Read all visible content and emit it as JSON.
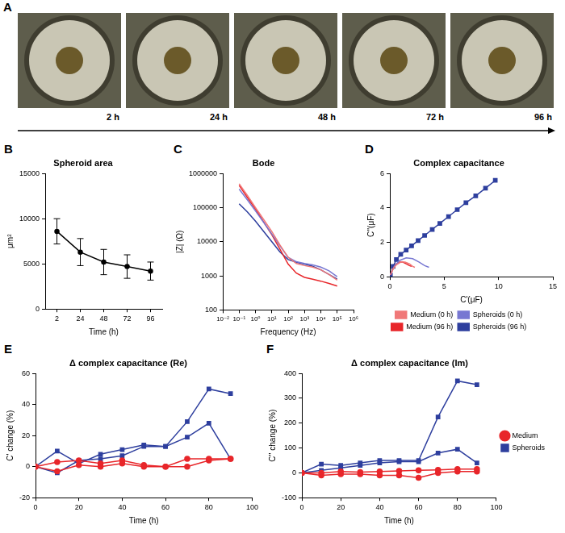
{
  "image_panel": {
    "panel": "A",
    "labels": [
      "2 h",
      "24 h",
      "48 h",
      "72 h",
      "96 h"
    ]
  },
  "chart_data": [
    {
      "panel": "B",
      "type": "line",
      "title": "Spheroid area",
      "x_label": "Time (h)",
      "y_label": "μm²",
      "categories": [
        "2",
        "24",
        "48",
        "72",
        "96"
      ],
      "values": [
        8600,
        6300,
        5200,
        4700,
        4200
      ],
      "errors": [
        1400,
        1500,
        1400,
        1300,
        1000
      ],
      "color": "#000000",
      "marker": "circle",
      "ylim": [
        0,
        15000
      ],
      "yticks": [
        0,
        5000,
        10000,
        15000
      ],
      "grid": false
    },
    {
      "panel": "C",
      "type": "line",
      "title": "Bode",
      "x_label": "Frequency (Hz)",
      "y_label": "|Z| (Ω)",
      "x": [
        0.1,
        0.316,
        1,
        3.16,
        10,
        31.6,
        100,
        316,
        1000,
        3162,
        10000,
        31623,
        100000
      ],
      "series": [
        {
          "name": "Medium (0 h)",
          "color": "#f07878",
          "values": [
            500000,
            230000,
            100000,
            45000,
            20000,
            8000,
            3500,
            2300,
            2000,
            1800,
            1500,
            1100,
            750
          ]
        },
        {
          "name": "Spheroids (0 h)",
          "color": "#7878d2",
          "values": [
            350000,
            170000,
            80000,
            37000,
            17000,
            7500,
            3500,
            2600,
            2300,
            2100,
            1800,
            1400,
            950
          ]
        },
        {
          "name": "Medium (96 h)",
          "color": "#e8262a",
          "values": [
            450000,
            200000,
            90000,
            38000,
            16000,
            6000,
            2200,
            1200,
            900,
            800,
            700,
            600,
            500
          ]
        },
        {
          "name": "Spheroids (96 h)",
          "color": "#2e3f9e",
          "values": [
            130000,
            75000,
            40000,
            20000,
            10000,
            5000,
            3000,
            2500,
            2200,
            1900,
            1500,
            1100,
            800
          ]
        }
      ],
      "marker": "none",
      "log": true,
      "xlim": [
        0.01,
        1000000
      ],
      "xticks": [
        {
          "value": 0.01,
          "label": "10⁻²"
        },
        {
          "value": 0.1,
          "label": "10⁻¹"
        },
        {
          "value": 1,
          "label": "10⁰"
        },
        {
          "value": 10,
          "label": "10¹"
        },
        {
          "value": 100,
          "label": "10²"
        },
        {
          "value": 1000,
          "label": "10³"
        },
        {
          "value": 10000,
          "label": "10⁴"
        },
        {
          "value": 100000,
          "label": "10⁵"
        },
        {
          "value": 1000000,
          "label": "10⁶"
        }
      ],
      "ylim": [
        100,
        1000000
      ],
      "yticks": [
        100,
        1000,
        10000,
        100000,
        1000000
      ],
      "grid": false
    },
    {
      "panel": "D",
      "type": "line",
      "title": "Complex capacitance",
      "x_label": "C'(μF)",
      "y_label": "C''(μF)",
      "series": [
        {
          "name": "Medium (0 h)",
          "color": "#f07878",
          "marker": "none",
          "x": [
            0.05,
            0.3,
            0.6,
            1.0,
            1.4,
            1.8,
            2.1,
            2.3
          ],
          "values": [
            0.1,
            0.45,
            0.7,
            0.85,
            0.85,
            0.75,
            0.6,
            0.55
          ]
        },
        {
          "name": "Spheroids (0 h)",
          "color": "#7878d2",
          "marker": "none",
          "x": [
            0.05,
            0.4,
            0.9,
            1.5,
            2.1,
            2.7,
            3.2,
            3.6
          ],
          "values": [
            0.1,
            0.6,
            0.95,
            1.1,
            1.05,
            0.85,
            0.65,
            0.55
          ]
        },
        {
          "name": "Medium (96 h)",
          "color": "#e8262a",
          "marker": "none",
          "x": [
            0.05,
            0.3,
            0.6,
            0.9,
            1.2,
            1.5,
            1.8,
            2.0
          ],
          "values": [
            0.1,
            0.5,
            0.75,
            0.85,
            0.85,
            0.75,
            0.65,
            0.6
          ]
        },
        {
          "name": "Spheroids (96 h)",
          "color": "#2e3f9e",
          "marker": "square",
          "x": [
            0.05,
            0.3,
            0.6,
            1.0,
            1.5,
            2.0,
            2.6,
            3.2,
            3.9,
            4.6,
            5.4,
            6.2,
            7.0,
            7.9,
            8.8,
            9.7
          ],
          "values": [
            0.1,
            0.6,
            1.0,
            1.3,
            1.55,
            1.8,
            2.1,
            2.4,
            2.75,
            3.1,
            3.5,
            3.9,
            4.3,
            4.7,
            5.15,
            5.6
          ]
        }
      ],
      "xlim": [
        0,
        15
      ],
      "xticks": [
        0,
        5,
        10,
        15
      ],
      "ylim": [
        0,
        6
      ],
      "yticks": [
        0,
        2,
        4,
        6
      ],
      "grid": false,
      "legend": "bottom"
    },
    {
      "panel": "E",
      "type": "line",
      "title": "Δ complex capacitance (Re)",
      "x_label": "Time (h)",
      "y_label": "C' change (%)",
      "x": [
        0,
        10,
        20,
        30,
        40,
        50,
        60,
        70,
        80,
        90
      ],
      "series": [
        {
          "name": "Medium",
          "color": "#e8262a",
          "marker": "circle",
          "values": [
            0,
            3,
            4,
            2,
            4,
            1,
            0,
            5,
            5,
            5
          ]
        },
        {
          "name": "Medium",
          "color": "#e8262a",
          "marker": "circle",
          "values": [
            0,
            -3,
            1,
            0,
            2,
            0,
            0,
            0,
            4,
            5
          ]
        },
        {
          "name": "Spheroids",
          "color": "#2e3f9e",
          "marker": "square",
          "values": [
            0,
            10,
            2,
            8,
            11,
            14,
            13,
            29,
            50,
            47
          ]
        },
        {
          "name": "Spheroids",
          "color": "#2e3f9e",
          "marker": "square",
          "values": [
            0,
            -4,
            4,
            5,
            7,
            13,
            13,
            19,
            28,
            5
          ]
        }
      ],
      "xlim": [
        0,
        100
      ],
      "xticks": [
        0,
        20,
        40,
        60,
        80,
        100
      ],
      "ylim": [
        -20,
        60
      ],
      "yticks": [
        -20,
        0,
        20,
        40,
        60
      ],
      "grid": false
    },
    {
      "panel": "F",
      "type": "line",
      "title": "Δ complex capacitance (Im)",
      "x_label": "Time (h)",
      "y_label": "C'' change (%)",
      "x": [
        0,
        10,
        20,
        30,
        40,
        50,
        60,
        70,
        80,
        90
      ],
      "series": [
        {
          "name": "Medium",
          "color": "#e8262a",
          "marker": "circle",
          "values": [
            0,
            0,
            5,
            3,
            5,
            8,
            10,
            12,
            15,
            15
          ]
        },
        {
          "name": "Medium",
          "color": "#e8262a",
          "marker": "circle",
          "values": [
            0,
            -10,
            -5,
            -5,
            -10,
            -10,
            -20,
            0,
            5,
            5
          ]
        },
        {
          "name": "Spheroids",
          "color": "#2e3f9e",
          "marker": "square",
          "values": [
            0,
            35,
            30,
            40,
            50,
            50,
            50,
            225,
            370,
            355
          ]
        },
        {
          "name": "Spheroids",
          "color": "#2e3f9e",
          "marker": "square",
          "values": [
            0,
            10,
            20,
            30,
            40,
            45,
            45,
            80,
            95,
            40
          ]
        }
      ],
      "xlim": [
        0,
        100
      ],
      "xticks": [
        0,
        20,
        40,
        60,
        80,
        100
      ],
      "ylim": [
        -100,
        400
      ],
      "yticks": [
        -100,
        0,
        100,
        200,
        300,
        400
      ],
      "grid": false,
      "legend": "right"
    }
  ]
}
